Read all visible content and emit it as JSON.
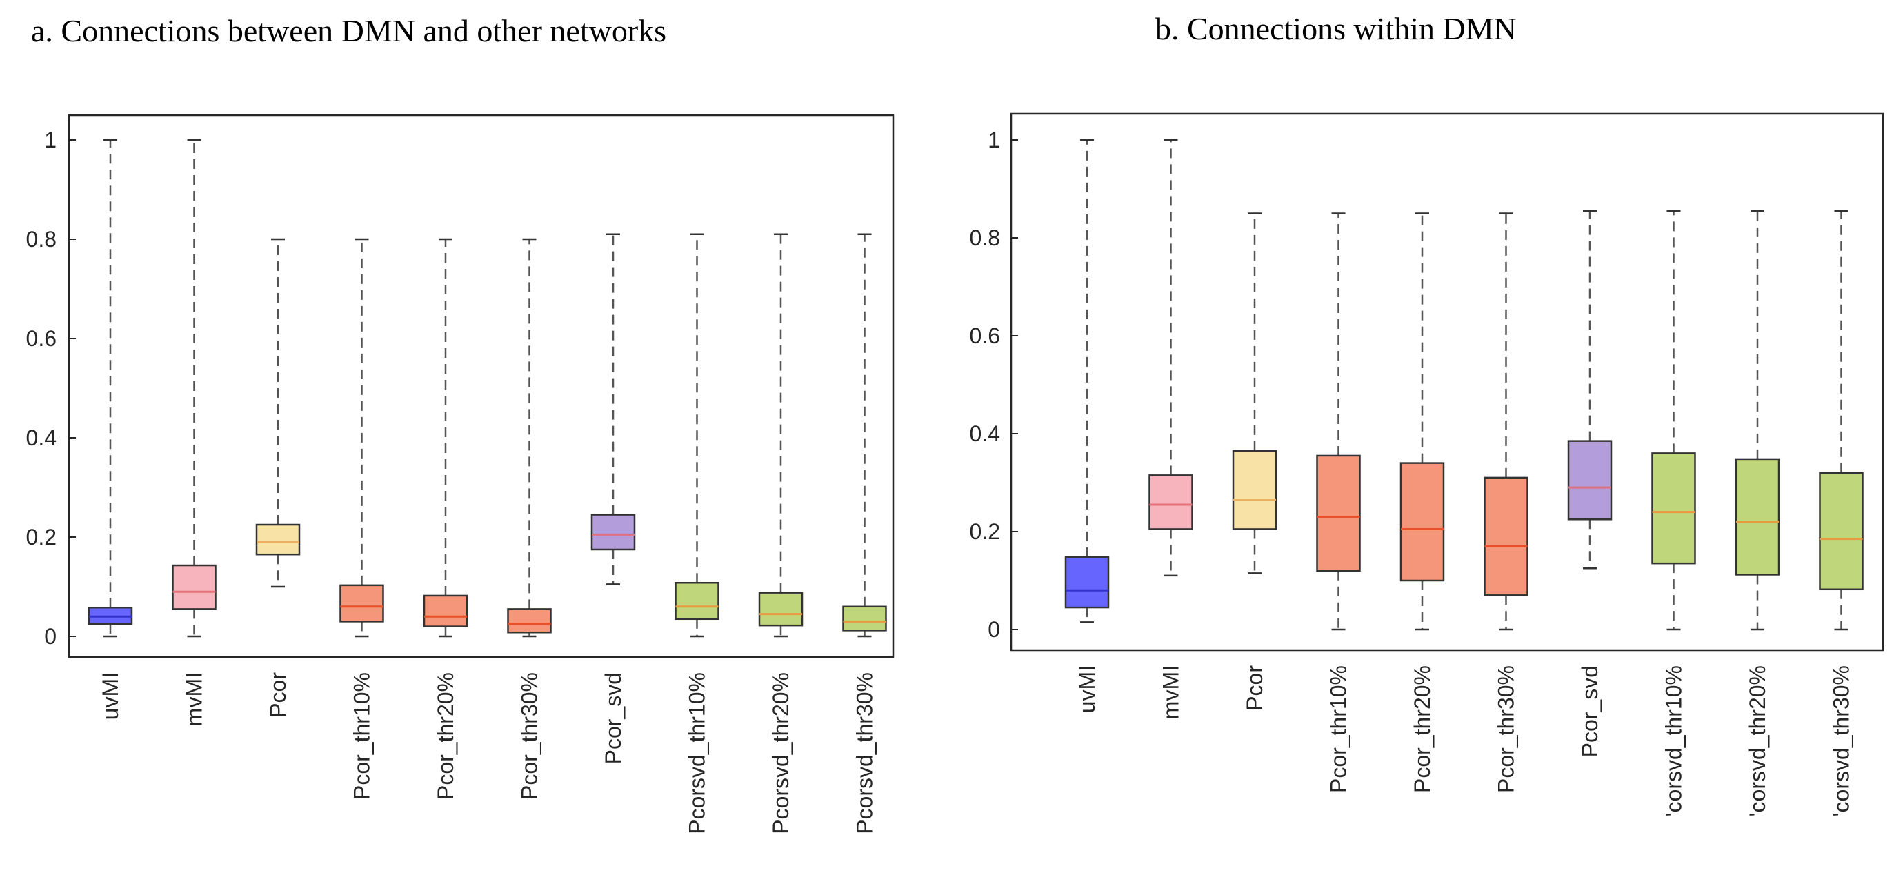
{
  "chart_data": [
    {
      "type": "box",
      "title": "a. Connections between DMN and other networks",
      "xlabel": "",
      "ylabel": "",
      "ylim": [
        -0.05,
        1.05
      ],
      "yticks": [
        0,
        0.2,
        0.4,
        0.6,
        0.8,
        1
      ],
      "ytick_labels": [
        "0",
        "0.2",
        "0.4",
        "0.6",
        "0.8",
        "1"
      ],
      "categories": [
        "uvMI",
        "mvMI",
        "Pcor",
        "Pcor_thr10%",
        "Pcor_thr20%",
        "Pcor_thr30%",
        "Pcor_svd",
        "Pcorsvd_thr10%",
        "Pcorsvd_thr20%",
        "Pcorsvd_thr30%"
      ],
      "boxes": [
        {
          "min": 0.0,
          "q1": 0.025,
          "median": 0.04,
          "q3": 0.058,
          "max": 1.0,
          "fill": "#6666ff",
          "median_color": "#3333cc"
        },
        {
          "min": 0.0,
          "q1": 0.055,
          "median": 0.09,
          "q3": 0.143,
          "max": 1.0,
          "fill": "#f8b4bd",
          "median_color": "#e8707a"
        },
        {
          "min": 0.1,
          "q1": 0.165,
          "median": 0.19,
          "q3": 0.225,
          "max": 0.8,
          "fill": "#f8e2a6",
          "median_color": "#e8b060"
        },
        {
          "min": 0.0,
          "q1": 0.03,
          "median": 0.06,
          "q3": 0.103,
          "max": 0.8,
          "fill": "#f5957a",
          "median_color": "#e8502a"
        },
        {
          "min": 0.0,
          "q1": 0.02,
          "median": 0.04,
          "q3": 0.082,
          "max": 0.8,
          "fill": "#f5957a",
          "median_color": "#e8502a"
        },
        {
          "min": 0.0,
          "q1": 0.008,
          "median": 0.025,
          "q3": 0.055,
          "max": 0.8,
          "fill": "#f5957a",
          "median_color": "#e8502a"
        },
        {
          "min": 0.105,
          "q1": 0.175,
          "median": 0.205,
          "q3": 0.245,
          "max": 0.81,
          "fill": "#b39ddb",
          "median_color": "#e07080"
        },
        {
          "min": 0.0,
          "q1": 0.035,
          "median": 0.06,
          "q3": 0.108,
          "max": 0.81,
          "fill": "#bfd67a",
          "median_color": "#e89a40"
        },
        {
          "min": 0.0,
          "q1": 0.022,
          "median": 0.045,
          "q3": 0.088,
          "max": 0.81,
          "fill": "#bfd67a",
          "median_color": "#e89a40"
        },
        {
          "min": 0.0,
          "q1": 0.012,
          "median": 0.03,
          "q3": 0.06,
          "max": 0.81,
          "fill": "#bfd67a",
          "median_color": "#e89a40"
        }
      ]
    },
    {
      "type": "box",
      "title": "b. Connections within DMN",
      "xlabel": "",
      "ylabel": "",
      "ylim": [
        -0.05,
        1.05
      ],
      "yticks": [
        0,
        0.2,
        0.4,
        0.6,
        0.8,
        1
      ],
      "ytick_labels": [
        "0",
        "0.2",
        "0.4",
        "0.6",
        "0.8",
        "1"
      ],
      "categories": [
        "uvMI",
        "mvMI",
        "Pcor",
        "Pcor_thr10%",
        "Pcor_thr20%",
        "Pcor_thr30%",
        "Pcor_svd",
        "'corsvd_thr10%",
        "'corsvd_thr20%",
        "'corsvd_thr30%"
      ],
      "boxes": [
        {
          "min": 0.015,
          "q1": 0.045,
          "median": 0.08,
          "q3": 0.148,
          "max": 1.0,
          "fill": "#6666ff",
          "median_color": "#3333cc"
        },
        {
          "min": 0.11,
          "q1": 0.205,
          "median": 0.255,
          "q3": 0.315,
          "max": 1.0,
          "fill": "#f8b4bd",
          "median_color": "#e8707a"
        },
        {
          "min": 0.115,
          "q1": 0.205,
          "median": 0.265,
          "q3": 0.365,
          "max": 0.85,
          "fill": "#f8e2a6",
          "median_color": "#e8b060"
        },
        {
          "min": 0.0,
          "q1": 0.12,
          "median": 0.23,
          "q3": 0.355,
          "max": 0.85,
          "fill": "#f5957a",
          "median_color": "#e8502a"
        },
        {
          "min": 0.0,
          "q1": 0.1,
          "median": 0.205,
          "q3": 0.34,
          "max": 0.85,
          "fill": "#f5957a",
          "median_color": "#e8502a"
        },
        {
          "min": 0.0,
          "q1": 0.07,
          "median": 0.17,
          "q3": 0.31,
          "max": 0.85,
          "fill": "#f5957a",
          "median_color": "#e8502a"
        },
        {
          "min": 0.125,
          "q1": 0.225,
          "median": 0.29,
          "q3": 0.385,
          "max": 0.855,
          "fill": "#b39ddb",
          "median_color": "#e07080"
        },
        {
          "min": 0.0,
          "q1": 0.135,
          "median": 0.24,
          "q3": 0.36,
          "max": 0.855,
          "fill": "#bfd67a",
          "median_color": "#e89a40"
        },
        {
          "min": 0.0,
          "q1": 0.112,
          "median": 0.22,
          "q3": 0.348,
          "max": 0.855,
          "fill": "#bfd67a",
          "median_color": "#e89a40"
        },
        {
          "min": 0.0,
          "q1": 0.082,
          "median": 0.185,
          "q3": 0.32,
          "max": 0.855,
          "fill": "#bfd67a",
          "median_color": "#e89a40"
        }
      ]
    }
  ]
}
